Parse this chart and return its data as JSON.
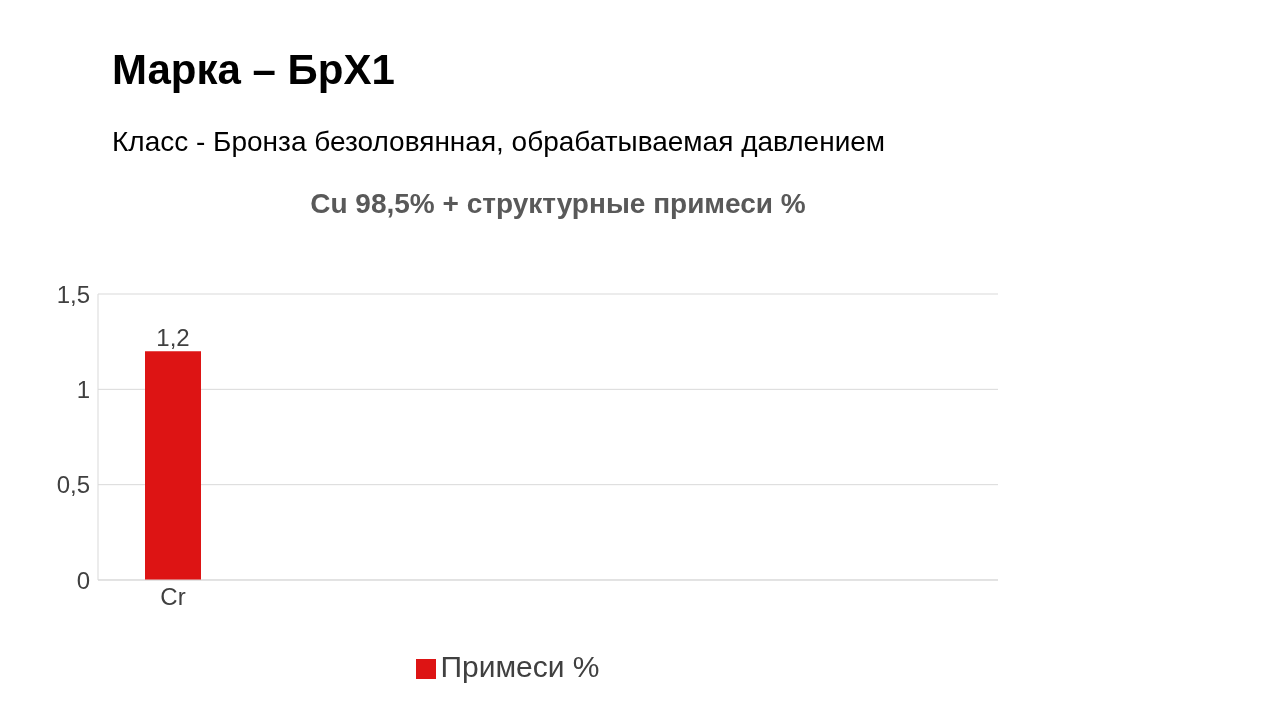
{
  "chart_data": {
    "type": "bar",
    "title": "Марка – БрХ1",
    "subtitle": "Класс - Бронза безоловянная, обрабатываемая давлением",
    "annotations": [
      "Cu 98,5% + структурные примеси %"
    ],
    "categories": [
      "Cr"
    ],
    "series": [
      {
        "name": "Примеси %",
        "color": "#dd1414",
        "values": [
          1.2
        ],
        "value_labels": [
          "1,2"
        ]
      }
    ],
    "ylim": [
      0,
      1.5
    ],
    "yticks": [
      0,
      {
        "value": 0.5,
        "label": "0,5"
      },
      1,
      {
        "value": 1.5,
        "label": "1,5"
      }
    ],
    "grid": "y",
    "legend": "bottom"
  }
}
